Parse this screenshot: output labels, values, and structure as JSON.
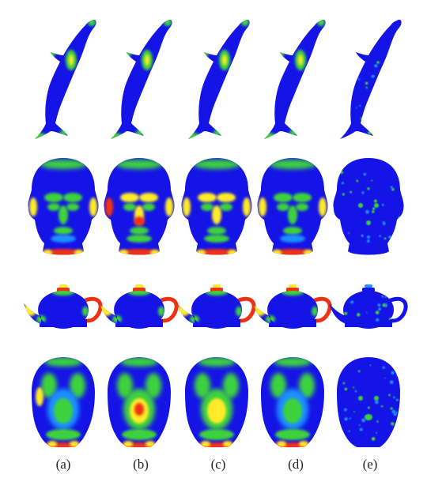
{
  "figure": {
    "rows": [
      "dolphin",
      "male-head",
      "teapot",
      "female-head"
    ],
    "columns": [
      {
        "key": "a",
        "caption": "(a)"
      },
      {
        "key": "b",
        "caption": "(b)"
      },
      {
        "key": "c",
        "caption": "(c)"
      },
      {
        "key": "d",
        "caption": "(d)"
      },
      {
        "key": "e",
        "caption": "(e)"
      }
    ],
    "colormap": {
      "low": "#1414e6",
      "mid_low": "#1e90ff",
      "mid": "#3cd23c",
      "mid_high": "#ffeb28",
      "high": "#f03214"
    }
  }
}
